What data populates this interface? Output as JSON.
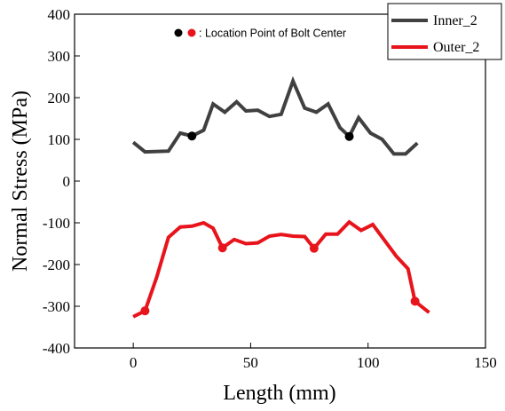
{
  "chart_data": {
    "type": "line",
    "xlabel": "Length (mm)",
    "ylabel": "Normal Stress (MPa)",
    "xlim": [
      -25,
      150
    ],
    "ylim": [
      -400,
      400
    ],
    "xticks": [
      0,
      50,
      100,
      150
    ],
    "yticks": [
      400,
      300,
      200,
      100,
      0,
      -100,
      -200,
      -300,
      -400
    ],
    "grid": false,
    "legend_position": "top-right",
    "annotation": {
      "text": ": Location Point of Bolt Center",
      "marker_colors": [
        "#000000",
        "#e8141b"
      ]
    },
    "series": [
      {
        "name": "Inner_2",
        "color": "#404040",
        "points": [
          [
            0,
            93
          ],
          [
            5,
            70
          ],
          [
            15,
            72
          ],
          [
            20,
            115
          ],
          [
            25,
            108
          ],
          [
            30,
            122
          ],
          [
            34,
            185
          ],
          [
            39,
            165
          ],
          [
            44,
            190
          ],
          [
            48,
            168
          ],
          [
            53,
            170
          ],
          [
            58,
            155
          ],
          [
            63,
            160
          ],
          [
            68,
            240
          ],
          [
            73,
            175
          ],
          [
            78,
            165
          ],
          [
            83,
            185
          ],
          [
            88,
            128
          ],
          [
            92,
            107
          ],
          [
            96,
            152
          ],
          [
            101,
            115
          ],
          [
            106,
            100
          ],
          [
            111,
            65
          ],
          [
            116,
            65
          ],
          [
            121,
            91
          ]
        ],
        "bolt_points": [
          [
            25,
            108
          ],
          [
            92,
            107
          ]
        ]
      },
      {
        "name": "Outer_2",
        "color": "#e8141b",
        "points": [
          [
            0,
            -325
          ],
          [
            5,
            -311
          ],
          [
            10,
            -230
          ],
          [
            15,
            -135
          ],
          [
            20,
            -110
          ],
          [
            25,
            -108
          ],
          [
            30,
            -100
          ],
          [
            34,
            -113
          ],
          [
            38,
            -160
          ],
          [
            43,
            -140
          ],
          [
            48,
            -150
          ],
          [
            53,
            -148
          ],
          [
            58,
            -132
          ],
          [
            63,
            -128
          ],
          [
            68,
            -132
          ],
          [
            73,
            -133
          ],
          [
            77,
            -161
          ],
          [
            82,
            -127
          ],
          [
            87,
            -127
          ],
          [
            92,
            -98
          ],
          [
            97,
            -118
          ],
          [
            102,
            -104
          ],
          [
            107,
            -142
          ],
          [
            112,
            -180
          ],
          [
            117,
            -210
          ],
          [
            120,
            -288
          ],
          [
            126,
            -315
          ]
        ],
        "bolt_points": [
          [
            5,
            -311
          ],
          [
            38,
            -160
          ],
          [
            77,
            -161
          ],
          [
            120,
            -288
          ]
        ]
      }
    ]
  }
}
